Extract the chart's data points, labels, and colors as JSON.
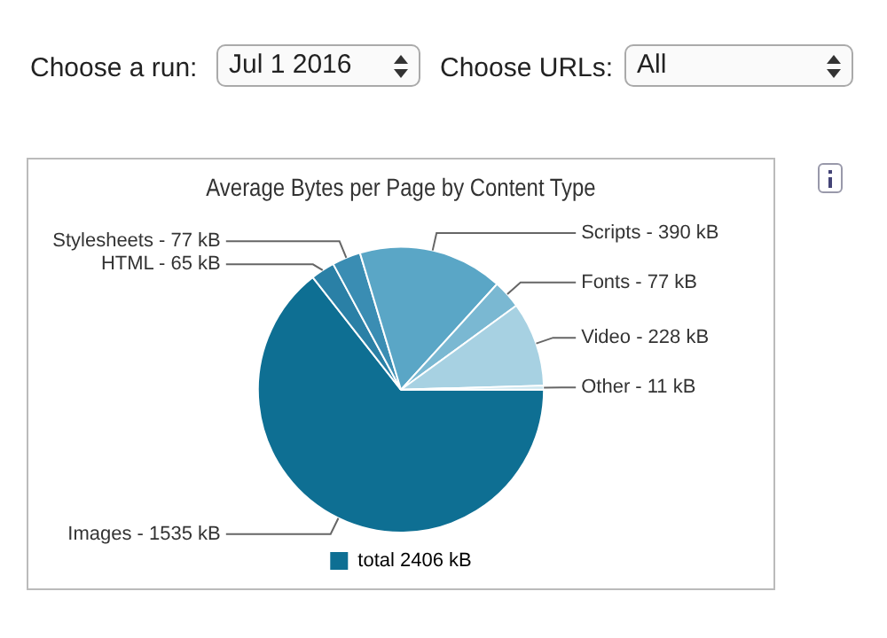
{
  "chart_data": {
    "type": "pie",
    "title": "Average Bytes per Page by Content Type",
    "categories": [
      "Images -",
      "HTML -",
      "Stylesheets -",
      "Scripts -",
      "Fonts -",
      "Video -",
      "Other -"
    ],
    "series": [
      {
        "name": "total 2406 kB",
        "color": "#0e6f93",
        "values": [
          1535,
          65,
          77,
          390,
          77,
          228,
          11
        ],
        "value_labels": [
          "1535 kB",
          "65 kB",
          "77 kB",
          "390 kB",
          "77 kB",
          "228 kB",
          "11 kB"
        ]
      }
    ],
    "colors": [
      "#0e6f93",
      "#2a80a6",
      "#3a8db3",
      "#5aa6c6",
      "#7ab8d2",
      "#a7d1e2",
      "#cde6ef"
    ],
    "legend": "bottom",
    "annotations": [
      "Choose a run:",
      "Jul 1 2016",
      "Choose URLs:",
      "All"
    ]
  }
}
